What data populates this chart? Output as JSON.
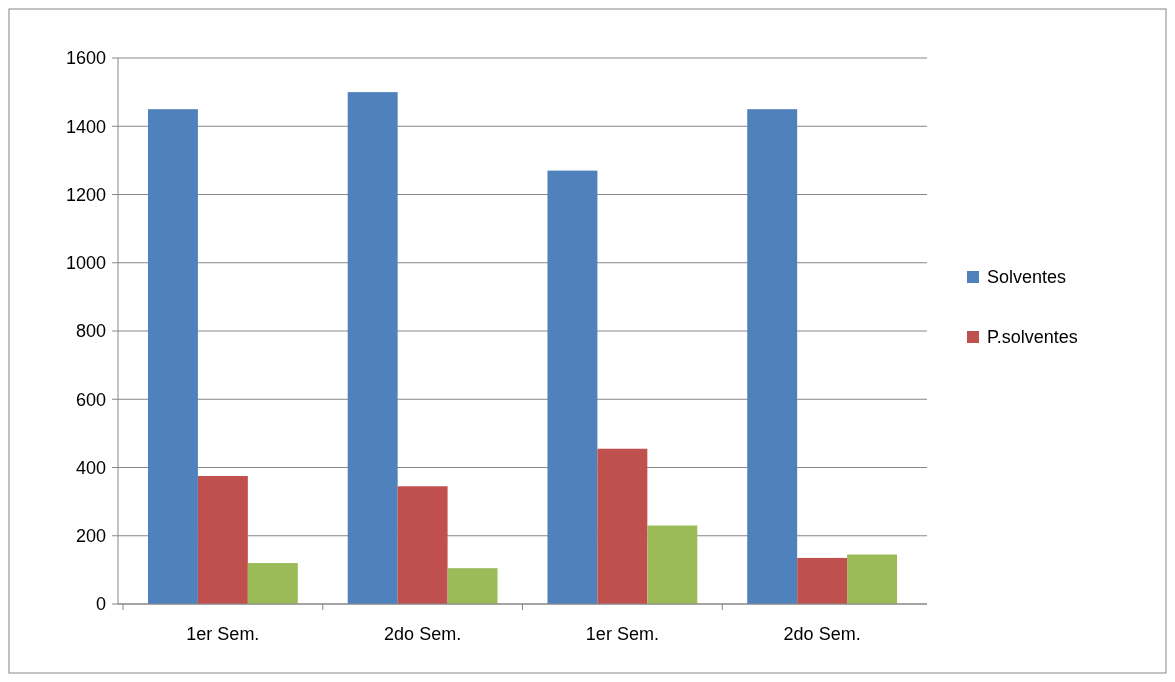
{
  "chart_data": {
    "type": "bar",
    "categories": [
      "1er Sem.",
      "2do Sem.",
      "1er Sem.",
      "2do Sem."
    ],
    "series": [
      {
        "name": "Solventes",
        "color": "#4f81bd",
        "values": [
          1450,
          1500,
          1270,
          1450
        ]
      },
      {
        "name": "P.solventes",
        "color": "#c0504d",
        "values": [
          375,
          345,
          455,
          135
        ]
      },
      {
        "color": "#9bbb59",
        "values": [
          120,
          105,
          230,
          145
        ]
      }
    ],
    "ylim": [
      0,
      1600
    ],
    "yticks": [
      0,
      200,
      400,
      600,
      800,
      1000,
      1200,
      1400,
      1600
    ],
    "grid": "y",
    "legend": "right"
  }
}
